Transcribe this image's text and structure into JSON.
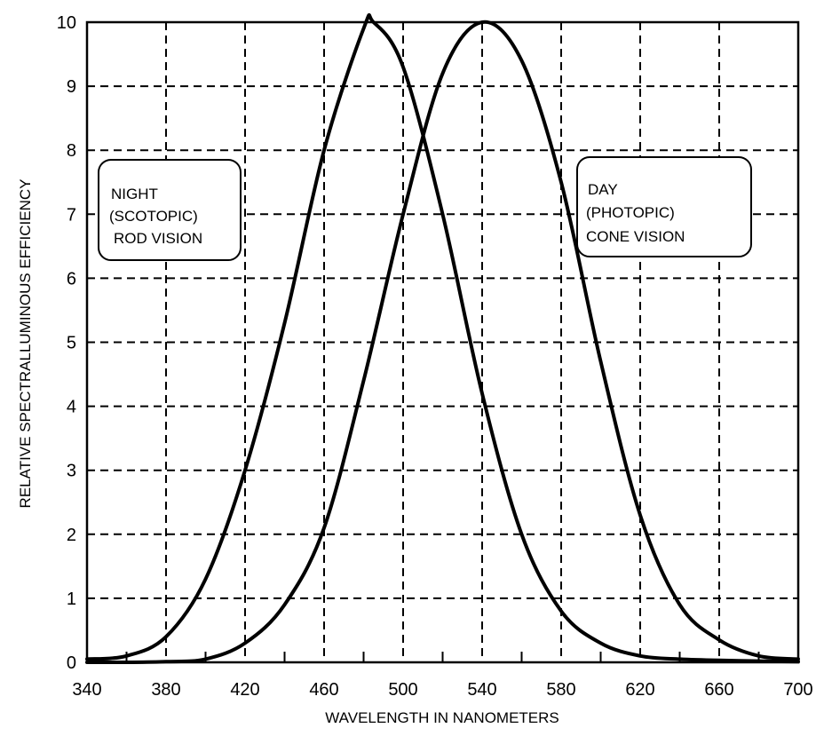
{
  "chart_data": {
    "type": "line",
    "title": "",
    "xlabel": "WAVELENGTH IN NANOMETERS",
    "ylabel": "RELATIVE SPECTRALLUMINOUS EFFICIENCY",
    "xlim": [
      340,
      700
    ],
    "ylim": [
      0,
      10
    ],
    "xticks": [
      340,
      380,
      420,
      460,
      500,
      540,
      580,
      620,
      660,
      700
    ],
    "x_tick_labels": [
      "340",
      "380",
      "420",
      "460",
      "500",
      "540",
      "580",
      "620",
      "660",
      "700"
    ],
    "yticks": [
      0,
      1,
      2,
      3,
      4,
      5,
      6,
      7,
      8,
      9,
      10
    ],
    "y_tick_labels": [
      "0",
      "1",
      "2",
      "3",
      "4",
      "5",
      "6",
      "7",
      "8",
      "9",
      "10"
    ],
    "x_minor_ticks": [
      360,
      400,
      440,
      480,
      520,
      560,
      600,
      640,
      680
    ],
    "grid": true,
    "series": [
      {
        "id": "scotopic",
        "x": [
          340,
          360,
          380,
          400,
          420,
          440,
          460,
          480,
          485,
          500,
          520,
          540,
          560,
          580,
          600,
          620,
          640,
          660,
          680,
          700
        ],
        "values": [
          0.05,
          0.1,
          0.4,
          1.3,
          3.0,
          5.3,
          8.0,
          9.9,
          10.0,
          9.3,
          7.0,
          4.2,
          2.0,
          0.8,
          0.3,
          0.1,
          0.05,
          0.03,
          0.02,
          0.01
        ]
      },
      {
        "id": "photopic",
        "x": [
          340,
          360,
          380,
          400,
          420,
          440,
          460,
          480,
          500,
          520,
          540,
          560,
          580,
          600,
          620,
          640,
          660,
          680,
          700
        ],
        "values": [
          0.0,
          0.0,
          0.01,
          0.05,
          0.3,
          0.9,
          2.1,
          4.4,
          7.0,
          9.2,
          10.0,
          9.4,
          7.5,
          4.7,
          2.3,
          0.9,
          0.35,
          0.1,
          0.05
        ]
      }
    ],
    "annotations": [
      {
        "id": "night",
        "lines": [
          "NIGHT",
          "(SCOTOPIC)",
          "ROD VISION"
        ]
      },
      {
        "id": "day",
        "lines": [
          "DAY",
          "(PHOTOPIC)",
          "CONE VISION"
        ]
      }
    ]
  }
}
